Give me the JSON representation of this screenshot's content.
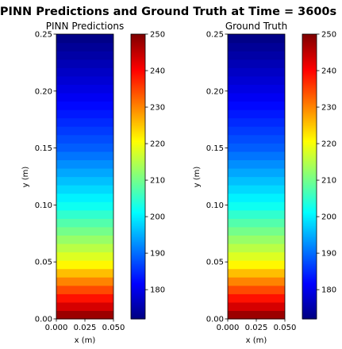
{
  "suptitle": "PINN Predictions and Ground Truth at Time = 3600s",
  "chart_data": [
    {
      "type": "heatmap",
      "title": "PINN Predictions",
      "xlabel": "x (m)",
      "ylabel": "y (m)",
      "xlim": [
        0.0,
        0.05
      ],
      "ylim": [
        0.0,
        0.25
      ],
      "x_ticks": [
        "0.000",
        "0.025",
        "0.050"
      ],
      "y_ticks": [
        "0.00",
        "0.05",
        "0.10",
        "0.15",
        "0.20",
        "0.25"
      ],
      "colormap": "jet",
      "colorbar_range": [
        172,
        250
      ],
      "colorbar_ticks": [
        "180",
        "190",
        "200",
        "210",
        "220",
        "230",
        "240",
        "250"
      ],
      "y_profile": {
        "y": [
          0.0,
          0.05,
          0.1,
          0.15,
          0.2,
          0.25
        ],
        "value": [
          250,
          220,
          202,
          189,
          180,
          172
        ]
      }
    },
    {
      "type": "heatmap",
      "title": "Ground Truth",
      "xlabel": "x (m)",
      "ylabel": "y (m)",
      "xlim": [
        0.0,
        0.05
      ],
      "ylim": [
        0.0,
        0.25
      ],
      "x_ticks": [
        "0.000",
        "0.025",
        "0.050"
      ],
      "y_ticks": [
        "0.00",
        "0.05",
        "0.10",
        "0.15",
        "0.20",
        "0.25"
      ],
      "colormap": "jet",
      "colorbar_range": [
        172,
        250
      ],
      "colorbar_ticks": [
        "180",
        "190",
        "200",
        "210",
        "220",
        "230",
        "240",
        "250"
      ],
      "y_profile": {
        "y": [
          0.0,
          0.05,
          0.1,
          0.15,
          0.2,
          0.25
        ],
        "value": [
          250,
          220,
          202,
          189,
          180,
          172
        ]
      }
    }
  ]
}
